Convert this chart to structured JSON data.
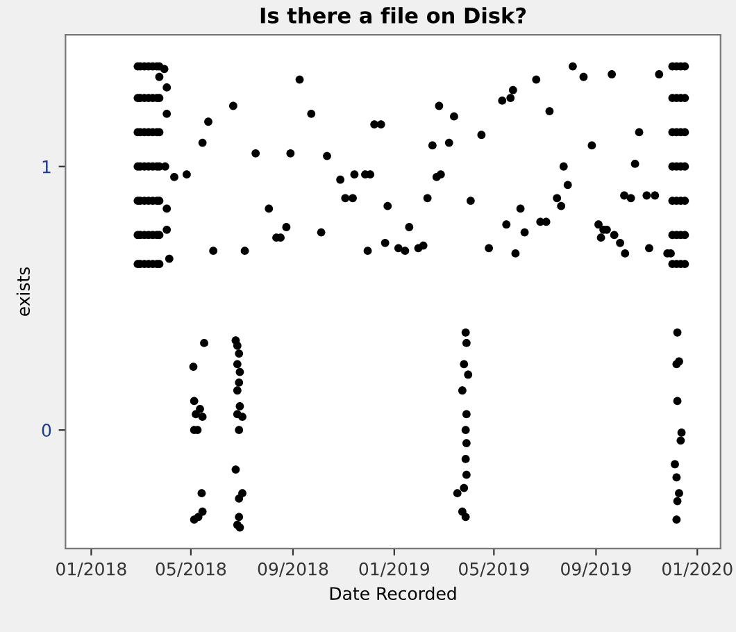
{
  "chart_data": {
    "type": "scatter",
    "title": "Is there a file on Disk?",
    "xlabel": "Date Recorded",
    "ylabel": "exists",
    "xlim": [
      "2017-12-01",
      "2020-01-29"
    ],
    "ylim": [
      -0.45,
      1.5
    ],
    "xticks": [
      {
        "value": "2018-01-01",
        "label": "01/2018"
      },
      {
        "value": "2018-05-01",
        "label": "05/2018"
      },
      {
        "value": "2018-09-01",
        "label": "09/2018"
      },
      {
        "value": "2019-01-01",
        "label": "01/2019"
      },
      {
        "value": "2019-05-01",
        "label": "05/2019"
      },
      {
        "value": "2019-09-01",
        "label": "09/2019"
      },
      {
        "value": "2020-01-01",
        "label": "01/2020"
      }
    ],
    "yticks": [
      0,
      1
    ],
    "grid": false,
    "marker": "circle",
    "series": [
      {
        "color": "#000000",
        "x": [
          "2018-02-26",
          "2018-02-26",
          "2018-02-26",
          "2018-02-26",
          "2018-02-26",
          "2018-02-26",
          "2018-02-26",
          "2018-03-01",
          "2018-03-01",
          "2018-03-01",
          "2018-03-01",
          "2018-03-01",
          "2018-03-01",
          "2018-03-01",
          "2018-03-06",
          "2018-03-06",
          "2018-03-06",
          "2018-03-06",
          "2018-03-06",
          "2018-03-06",
          "2018-03-06",
          "2018-03-11",
          "2018-03-11",
          "2018-03-11",
          "2018-03-11",
          "2018-03-11",
          "2018-03-11",
          "2018-03-11",
          "2018-03-16",
          "2018-03-16",
          "2018-03-16",
          "2018-03-16",
          "2018-03-16",
          "2018-03-16",
          "2018-03-16",
          "2018-03-21",
          "2018-03-21",
          "2018-03-21",
          "2018-03-21",
          "2018-03-21",
          "2018-03-21",
          "2018-03-21",
          "2018-03-24",
          "2018-03-24",
          "2018-03-24",
          "2018-03-24",
          "2018-03-24",
          "2018-03-24",
          "2018-03-24",
          "2019-12-02",
          "2019-12-02",
          "2019-12-02",
          "2019-12-02",
          "2019-12-02",
          "2019-12-02",
          "2019-12-02",
          "2019-12-07",
          "2019-12-07",
          "2019-12-07",
          "2019-12-07",
          "2019-12-07",
          "2019-12-07",
          "2019-12-07",
          "2019-12-12",
          "2019-12-12",
          "2019-12-12",
          "2019-12-12",
          "2019-12-12",
          "2019-12-12",
          "2019-12-12",
          "2019-12-17",
          "2019-12-17",
          "2019-12-17",
          "2019-12-17",
          "2019-12-17",
          "2019-12-17",
          "2019-12-17",
          "2018-03-24",
          "2018-03-30",
          "2018-04-02",
          "2018-04-02",
          "2018-03-31",
          "2018-04-02",
          "2018-04-02",
          "2018-04-05",
          "2018-04-11",
          "2018-04-26",
          "2018-05-15",
          "2018-05-22",
          "2018-05-28",
          "2018-06-21",
          "2018-07-05",
          "2018-07-18",
          "2018-08-03",
          "2018-08-12",
          "2018-08-17",
          "2018-08-24",
          "2018-08-29",
          "2018-09-09",
          "2018-09-23",
          "2018-10-05",
          "2018-10-12",
          "2018-10-28",
          "2018-11-03",
          "2018-11-12",
          "2018-11-14",
          "2018-11-27",
          "2018-11-30",
          "2018-12-03",
          "2018-12-08",
          "2018-12-16",
          "2018-12-21",
          "2018-12-24",
          "2019-01-06",
          "2019-01-14",
          "2019-01-19",
          "2019-01-30",
          "2019-02-05",
          "2019-02-10",
          "2019-02-16",
          "2019-02-21",
          "2019-02-24",
          "2019-02-26",
          "2019-03-08",
          "2019-03-14",
          "2019-04-03",
          "2019-04-16",
          "2019-04-25",
          "2019-05-11",
          "2019-05-16",
          "2019-05-21",
          "2019-05-24",
          "2019-05-27",
          "2019-06-02",
          "2019-06-07",
          "2019-06-21",
          "2019-06-26",
          "2019-07-03",
          "2019-07-07",
          "2019-07-16",
          "2019-07-21",
          "2019-07-24",
          "2019-07-29",
          "2019-08-04",
          "2019-08-17",
          "2019-08-27",
          "2019-09-04",
          "2019-09-07",
          "2019-09-10",
          "2019-09-14",
          "2019-09-20",
          "2019-09-23",
          "2019-09-30",
          "2019-10-05",
          "2019-10-06",
          "2019-10-13",
          "2019-10-18",
          "2019-10-23",
          "2019-11-01",
          "2019-11-04",
          "2019-11-11",
          "2019-11-16",
          "2019-11-26",
          "2019-11-30",
          "2018-05-04",
          "2018-05-05",
          "2018-05-07",
          "2018-05-05",
          "2018-05-12",
          "2018-05-15",
          "2018-05-17",
          "2018-05-09",
          "2018-05-05",
          "2018-05-10",
          "2018-05-14",
          "2018-05-15",
          "2018-06-24",
          "2018-06-26",
          "2018-06-28",
          "2018-06-26",
          "2018-06-29",
          "2018-06-28",
          "2018-06-26",
          "2018-06-29",
          "2018-06-26",
          "2018-07-02",
          "2018-06-28",
          "2018-06-24",
          "2018-06-28",
          "2018-07-02",
          "2018-06-28",
          "2018-06-26",
          "2018-06-29",
          "2019-03-28",
          "2019-03-29",
          "2019-03-26",
          "2019-03-31",
          "2019-03-24",
          "2019-03-29",
          "2019-03-28",
          "2019-03-29",
          "2019-03-28",
          "2019-03-29",
          "2019-03-26",
          "2019-03-18",
          "2019-03-24",
          "2019-03-28",
          "2019-12-08",
          "2019-12-10",
          "2019-12-07",
          "2019-12-08",
          "2019-12-12",
          "2019-12-13",
          "2019-12-05",
          "2019-12-07",
          "2019-12-10",
          "2019-12-08",
          "2019-12-07"
        ],
        "values": [
          1.38,
          1.26,
          1.13,
          1.0,
          0.87,
          0.74,
          0.63,
          1.38,
          1.26,
          1.13,
          1.0,
          0.87,
          0.74,
          0.63,
          1.38,
          1.26,
          1.13,
          1.0,
          0.87,
          0.74,
          0.63,
          1.38,
          1.26,
          1.13,
          1.0,
          0.87,
          0.74,
          0.63,
          1.38,
          1.26,
          1.13,
          1.0,
          0.87,
          0.74,
          0.63,
          1.38,
          1.26,
          1.13,
          1.0,
          0.87,
          0.74,
          0.63,
          1.38,
          1.26,
          1.13,
          1.0,
          0.87,
          0.74,
          0.63,
          1.38,
          1.26,
          1.13,
          1.0,
          0.87,
          0.74,
          0.63,
          1.38,
          1.26,
          1.13,
          1.0,
          0.87,
          0.74,
          0.63,
          1.38,
          1.26,
          1.13,
          1.0,
          0.87,
          0.74,
          0.63,
          1.38,
          1.26,
          1.13,
          1.0,
          0.87,
          0.74,
          0.63,
          1.34,
          1.37,
          1.3,
          1.2,
          1.0,
          0.84,
          0.76,
          0.65,
          0.96,
          0.97,
          1.09,
          1.17,
          0.68,
          1.23,
          0.68,
          1.05,
          0.84,
          0.73,
          0.73,
          0.77,
          1.05,
          1.33,
          1.2,
          0.75,
          1.04,
          0.95,
          0.88,
          0.88,
          0.97,
          0.97,
          0.68,
          0.97,
          1.16,
          1.16,
          0.71,
          0.85,
          0.69,
          0.68,
          0.77,
          0.69,
          0.7,
          0.88,
          1.08,
          0.96,
          1.23,
          0.97,
          1.09,
          1.19,
          0.87,
          1.12,
          0.69,
          1.25,
          0.78,
          1.26,
          1.29,
          0.67,
          0.84,
          0.75,
          1.33,
          0.79,
          0.79,
          1.21,
          0.88,
          0.85,
          1.0,
          0.93,
          1.38,
          1.34,
          1.08,
          0.78,
          0.73,
          0.76,
          0.76,
          1.35,
          0.74,
          0.71,
          0.89,
          0.67,
          0.88,
          1.01,
          1.13,
          0.89,
          0.69,
          0.89,
          1.35,
          0.67,
          0.67,
          0.24,
          0.11,
          0.06,
          0,
          0.08,
          0.05,
          0.33,
          0,
          -0.34,
          -0.33,
          -0.24,
          -0.31,
          0.34,
          0.32,
          0.29,
          0.25,
          0.22,
          0.18,
          0.15,
          0.09,
          0.06,
          0.05,
          0,
          -0.15,
          -0.26,
          -0.24,
          -0.33,
          -0.36,
          -0.37,
          0.37,
          0.33,
          0.25,
          0.21,
          0.15,
          0.06,
          0,
          -0.05,
          -0.11,
          -0.17,
          -0.22,
          -0.24,
          -0.31,
          -0.33,
          0.37,
          0.26,
          0.25,
          0.11,
          -0.04,
          -0.01,
          -0.13,
          -0.18,
          -0.24,
          -0.27,
          -0.34
        ]
      }
    ]
  }
}
